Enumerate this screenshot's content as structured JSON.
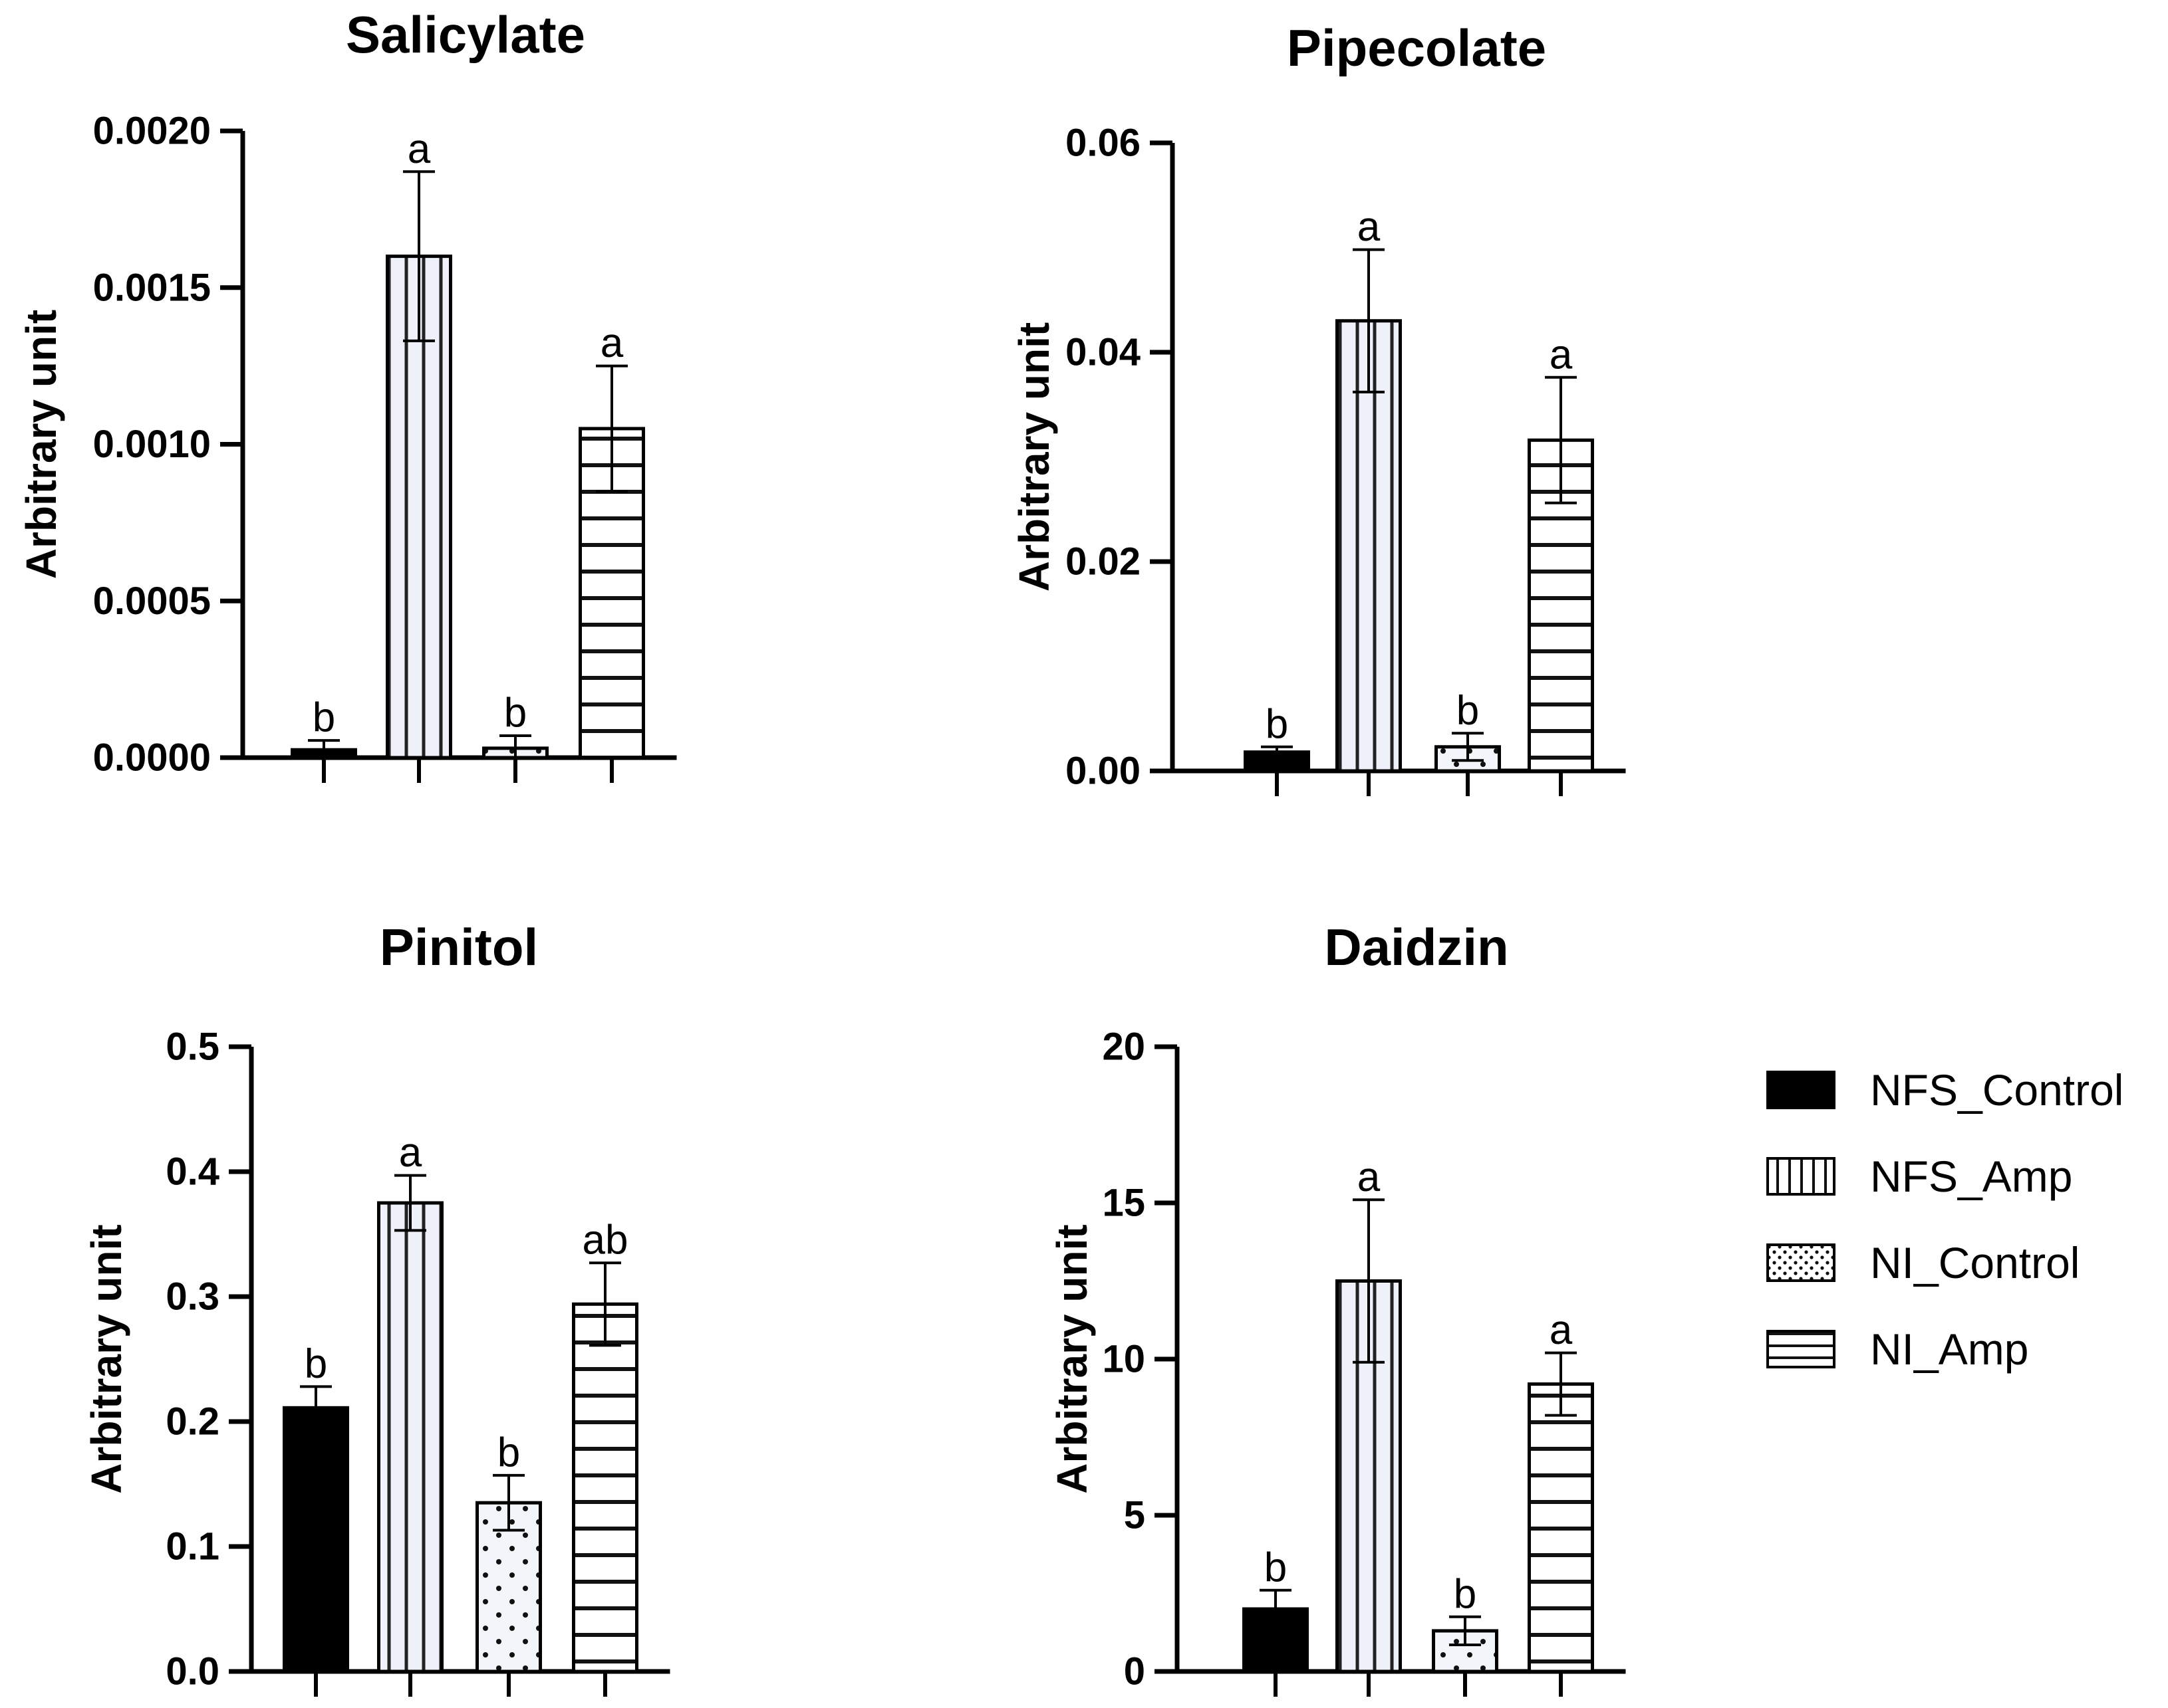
{
  "legend": [
    {
      "label": "NFS_Control",
      "pattern": "solid"
    },
    {
      "label": "NFS_Amp",
      "pattern": "vertical"
    },
    {
      "label": "NI_Control",
      "pattern": "dots"
    },
    {
      "label": "NI_Amp",
      "pattern": "horizontal"
    }
  ],
  "chart_data": [
    {
      "type": "bar",
      "title": "Salicylate",
      "ylabel": "Arbitrary unit",
      "xlabel": "",
      "ylim": [
        0,
        0.002
      ],
      "yticks": [
        "0.0000",
        "0.0005",
        "0.0010",
        "0.0015",
        "0.0020"
      ],
      "categories": [
        "NFS_Control",
        "NFS_Amp",
        "NI_Control",
        "NI_Amp"
      ],
      "values": [
        2.5e-05,
        0.0016,
        3e-05,
        0.00105
      ],
      "errors": [
        3e-05,
        0.00027,
        4e-05,
        0.0002
      ],
      "letters": [
        "b",
        "a",
        "b",
        "a"
      ]
    },
    {
      "type": "bar",
      "title": "Pipecolate",
      "ylabel": "Arbitrary unit",
      "xlabel": "",
      "ylim": [
        0,
        0.06
      ],
      "yticks": [
        "0.00",
        "0.02",
        "0.04",
        "0.06"
      ],
      "categories": [
        "NFS_Control",
        "NFS_Amp",
        "NI_Control",
        "NI_Amp"
      ],
      "values": [
        0.0018,
        0.043,
        0.0023,
        0.0316
      ],
      "errors": [
        0.0005,
        0.0068,
        0.0013,
        0.006
      ],
      "letters": [
        "b",
        "a",
        "b",
        "a"
      ]
    },
    {
      "type": "bar",
      "title": "Pinitol",
      "ylabel": "Arbitrary unit",
      "xlabel": "",
      "ylim": [
        0,
        0.5
      ],
      "yticks": [
        "0.0",
        "0.1",
        "0.2",
        "0.3",
        "0.4",
        "0.5"
      ],
      "categories": [
        "NFS_Control",
        "NFS_Amp",
        "NI_Control",
        "NI_Amp"
      ],
      "values": [
        0.211,
        0.375,
        0.135,
        0.294
      ],
      "errors": [
        0.017,
        0.022,
        0.022,
        0.033
      ],
      "letters": [
        "b",
        "a",
        "b",
        "ab"
      ]
    },
    {
      "type": "bar",
      "title": "Daidzin",
      "ylabel": "Arbitrary unit",
      "xlabel": "",
      "ylim": [
        0,
        20
      ],
      "yticks": [
        "0",
        "5",
        "10",
        "15",
        "20"
      ],
      "categories": [
        "NFS_Control",
        "NFS_Amp",
        "NI_Control",
        "NI_Amp"
      ],
      "values": [
        2.0,
        12.5,
        1.3,
        9.2
      ],
      "errors": [
        0.6,
        2.6,
        0.45,
        1.0
      ],
      "letters": [
        "b",
        "a",
        "b",
        "a"
      ]
    }
  ]
}
